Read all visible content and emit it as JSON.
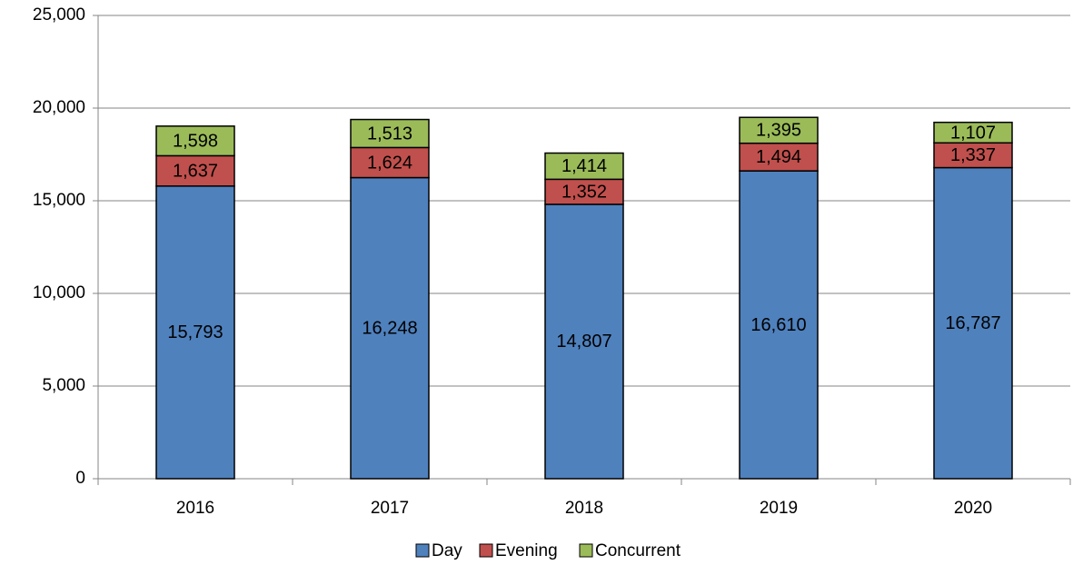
{
  "chart_data": {
    "type": "stacked_bar",
    "categories": [
      "2016",
      "2017",
      "2018",
      "2019",
      "2020"
    ],
    "series": [
      {
        "name": "Day",
        "color": "#4f81bd",
        "values": [
          15793,
          16248,
          14807,
          16610,
          16787
        ],
        "value_labels": [
          "15,793",
          "16,248",
          "14,807",
          "16,610",
          "16,787"
        ]
      },
      {
        "name": "Evening",
        "color": "#c0504d",
        "values": [
          1637,
          1624,
          1352,
          1494,
          1337
        ],
        "value_labels": [
          "1,637",
          "1,624",
          "1,352",
          "1,494",
          "1,337"
        ]
      },
      {
        "name": "Concurrent",
        "color": "#9bbb59",
        "values": [
          1598,
          1513,
          1414,
          1395,
          1107
        ],
        "value_labels": [
          "1,598",
          "1,513",
          "1,414",
          "1,395",
          "1,107"
        ]
      }
    ],
    "ylim": [
      0,
      25000
    ],
    "yticks": [
      0,
      {
        "value": 5000,
        "label": "5,000"
      },
      {
        "value": 10000,
        "label": "10,000"
      },
      {
        "value": 15000,
        "label": "15,000"
      },
      {
        "value": 20000,
        "label": "20,000"
      },
      {
        "value": 25000,
        "label": "25,000"
      }
    ],
    "grid": true,
    "legend": "bottom"
  }
}
